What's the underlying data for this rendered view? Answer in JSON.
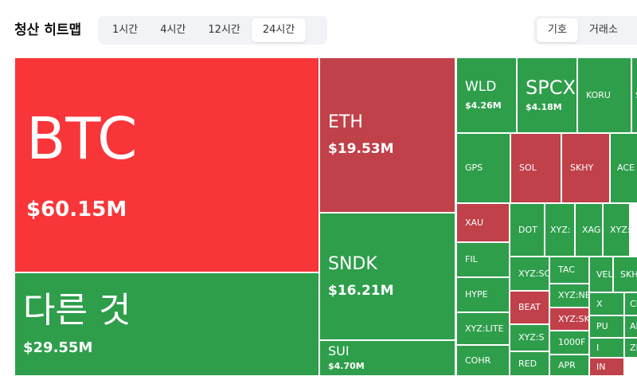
{
  "header": {
    "title": "청산 히트맵",
    "time_tabs": [
      "1시간",
      "4시간",
      "12시간",
      "24시간"
    ],
    "group_tabs": [
      "기호",
      "거래소"
    ]
  },
  "cells": [
    {
      "label": "BTC",
      "value": "$60.15M"
    },
    {
      "label": "다른 것",
      "value": "$29.55M"
    },
    {
      "label": "ETH",
      "value": "$19.53M"
    },
    {
      "label": "SNDK",
      "value": "$16.21M"
    },
    {
      "label": "SUI",
      "value": "$4.70M"
    },
    {
      "label": "WLD",
      "value": "$4.26M"
    },
    {
      "label": "SPCX",
      "value": "$4.18M"
    },
    {
      "label": "KORU"
    },
    {
      "label": "SOXL"
    },
    {
      "label": "GPS"
    },
    {
      "label": "SOL"
    },
    {
      "label": "SKHY"
    },
    {
      "label": "ACE"
    },
    {
      "label": "XAU"
    },
    {
      "label": "FIL"
    },
    {
      "label": "HYPE"
    },
    {
      "label": "XYZ:LITE"
    },
    {
      "label": "COHR"
    },
    {
      "label": "DOT"
    },
    {
      "label": "XYZ:"
    },
    {
      "label": "XAG"
    },
    {
      "label": "XYZ:IN"
    },
    {
      "label": "XYZ:SC"
    },
    {
      "label": "TAC"
    },
    {
      "label": "VEL"
    },
    {
      "label": "SKHY"
    },
    {
      "label": "XYZ:NE"
    },
    {
      "label": "BEAT"
    },
    {
      "label": "X"
    },
    {
      "label": "CL"
    },
    {
      "label": "XYZ:SK"
    },
    {
      "label": "XYZ:S"
    },
    {
      "label": "PU"
    },
    {
      "label": "AKE"
    },
    {
      "label": "1000F"
    },
    {
      "label": "I"
    },
    {
      "label": "ZEC"
    },
    {
      "label": "RED"
    },
    {
      "label": "APR"
    },
    {
      "label": "IN"
    }
  ]
}
